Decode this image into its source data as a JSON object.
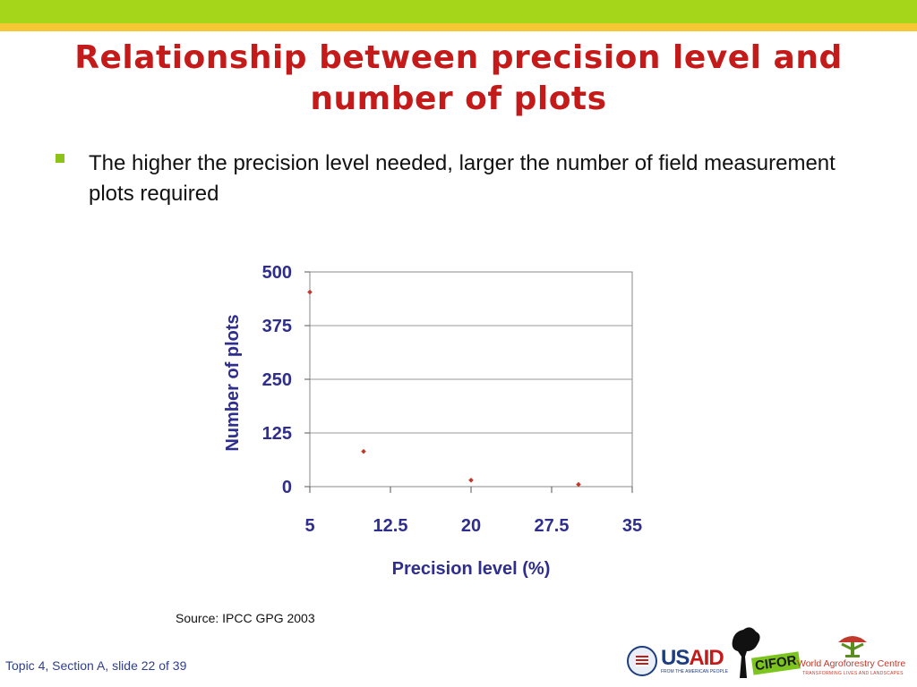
{
  "slide": {
    "title": "Relationship between precision level and number of plots",
    "bullet_text": "The higher the precision level needed, larger the number of field measurement plots required",
    "source": "Source: IPCC GPG 2003",
    "footer": "Topic 4, Section A, slide 22 of 39"
  },
  "logos": {
    "usaid": "USAID",
    "usaid_us": "US",
    "usaid_aid": "AID",
    "usaid_tagline": "FROM THE AMERICAN PEOPLE",
    "cifor": "CIFOR",
    "icraf_name": "World Agroforestry Centre",
    "icraf_tagline": "TRANSFORMING LIVES AND LANDSCAPES"
  },
  "colors": {
    "title": "#c41a1a",
    "top_bar_green": "#a5d61a",
    "top_bar_yellow": "#f5c735",
    "bullet": "#8cc21a",
    "axis_text": "#2f2e8c",
    "marker": "#c0392b"
  },
  "chart_data": {
    "type": "scatter",
    "xlabel": "Precision level (%)",
    "ylabel": "Number of plots",
    "xlim": [
      5,
      35
    ],
    "ylim": [
      0,
      500
    ],
    "x_ticks": [
      "5",
      "12.5",
      "20",
      "27.5",
      "35"
    ],
    "y_ticks": [
      "0",
      "125",
      "250",
      "375",
      "500"
    ],
    "grid": true,
    "legend": "none",
    "points": [
      {
        "x": 5,
        "y": 453
      },
      {
        "x": 10,
        "y": 82
      },
      {
        "x": 20,
        "y": 15
      },
      {
        "x": 30,
        "y": 5
      }
    ]
  }
}
